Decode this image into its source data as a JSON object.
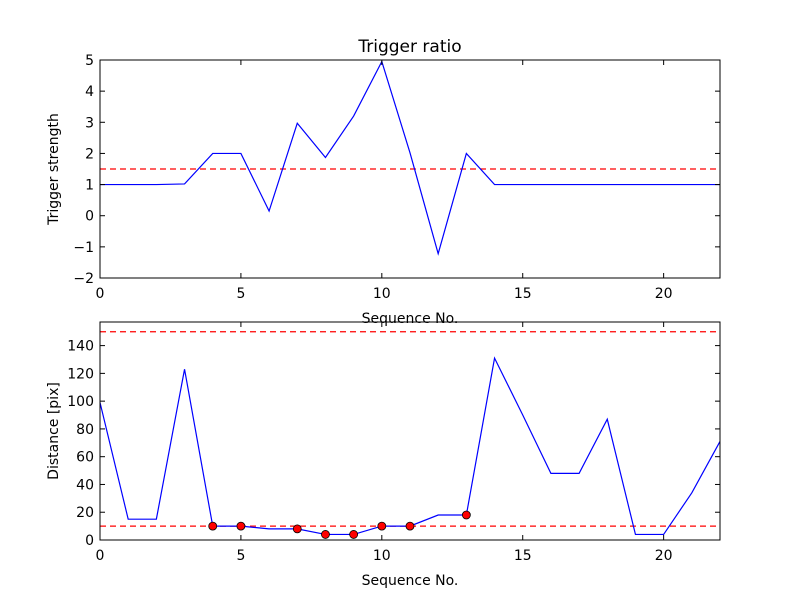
{
  "chart_data": [
    {
      "type": "line",
      "title": "Trigger ratio",
      "xlabel": "Sequence No.",
      "ylabel": "Trigger strength",
      "xlim": [
        0,
        22
      ],
      "ylim": [
        -2,
        5
      ],
      "xticks": [
        "0",
        "5",
        "10",
        "15",
        "20"
      ],
      "yticks": [
        "−2",
        "−1",
        "0",
        "1",
        "2",
        "3",
        "4",
        "5"
      ],
      "grid": false,
      "series": [
        {
          "color": "#0000ff",
          "x": [
            0,
            1,
            2,
            3,
            4,
            5,
            6,
            7,
            8,
            9,
            10,
            11,
            12,
            13,
            14,
            15,
            16,
            17,
            18,
            19,
            20,
            21,
            22
          ],
          "y": [
            1.0,
            1.0,
            1.0,
            1.02,
            2.0,
            2.0,
            0.15,
            2.97,
            1.87,
            3.2,
            4.95,
            2.02,
            -1.22,
            2.0,
            1.0,
            1.0,
            1.0,
            1.0,
            1.0,
            1.0,
            1.0,
            1.0,
            1.0
          ]
        }
      ],
      "reference_lines": [
        {
          "axis": "y",
          "value": 1.5,
          "color": "#ff0000",
          "style": "dashed"
        }
      ]
    },
    {
      "type": "line",
      "title": "",
      "xlabel": "Sequence No.",
      "ylabel": "Distance [pix]",
      "xlim": [
        0,
        22
      ],
      "ylim": [
        0,
        157
      ],
      "xticks": [
        "0",
        "5",
        "10",
        "15",
        "20"
      ],
      "yticks": [
        "0",
        "20",
        "40",
        "60",
        "80",
        "100",
        "120",
        "140"
      ],
      "grid": false,
      "series": [
        {
          "color": "#0000ff",
          "x": [
            0,
            1,
            2,
            3,
            4,
            5,
            6,
            7,
            8,
            9,
            10,
            11,
            12,
            13,
            14,
            15,
            16,
            17,
            18,
            19,
            20,
            21,
            22
          ],
          "y": [
            99,
            15,
            15,
            123,
            10,
            10,
            8,
            8,
            4,
            4,
            10,
            10,
            18,
            18,
            131,
            90,
            48,
            48,
            87,
            4,
            4,
            34,
            71
          ]
        }
      ],
      "markers": {
        "color": "#ff0000",
        "x": [
          4,
          5,
          7,
          8,
          9,
          10,
          11,
          13
        ],
        "y": [
          10,
          10,
          8,
          4,
          4,
          10,
          10,
          18
        ]
      },
      "reference_lines": [
        {
          "axis": "y",
          "value": 10,
          "color": "#ff0000",
          "style": "dashed"
        },
        {
          "axis": "y",
          "value": 150,
          "color": "#ff0000",
          "style": "dashed"
        }
      ]
    }
  ]
}
